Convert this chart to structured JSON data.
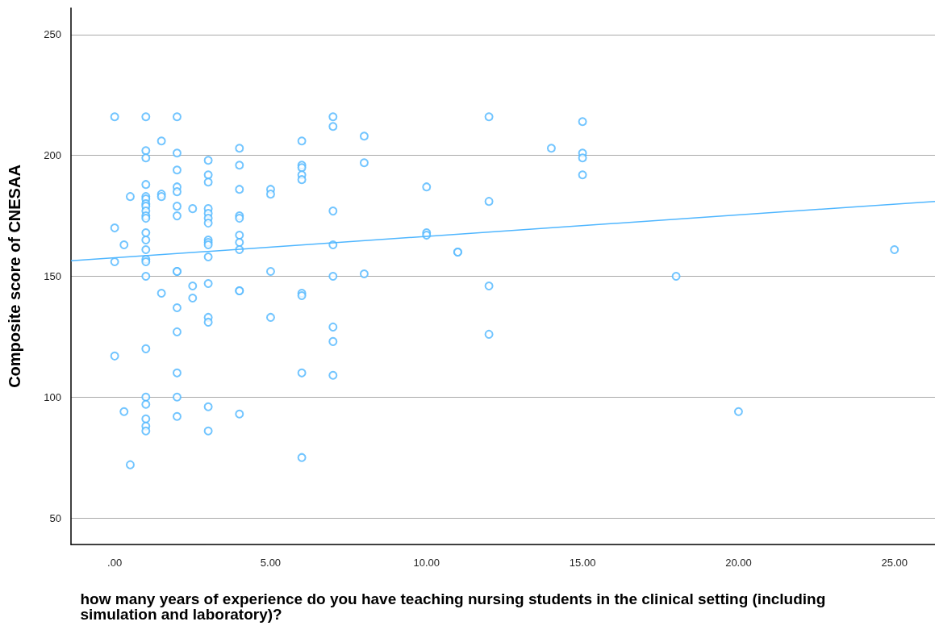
{
  "chart_data": {
    "type": "scatter",
    "xlabel": "how many years of experience do you have teaching nursing students in the clinical setting (including simulation and laboratory)?",
    "ylabel": "Composite score of CNESAA",
    "xlim": [
      -1.4,
      26.3
    ],
    "ylim": [
      39,
      261
    ],
    "xticks": [
      {
        "value": 0,
        "label": ".00"
      },
      {
        "value": 5,
        "label": "5.00"
      },
      {
        "value": 10,
        "label": "10.00"
      },
      {
        "value": 15,
        "label": "15.00"
      },
      {
        "value": 20,
        "label": "20.00"
      },
      {
        "value": 25,
        "label": "25.00"
      }
    ],
    "yticks": [
      50,
      100,
      150,
      200,
      250
    ],
    "grid": "y",
    "marker": "circle",
    "series": [
      {
        "color": "#4fb6ff",
        "x": [
          0,
          0,
          0,
          0,
          0.3,
          0.3,
          0.5,
          0.5,
          1,
          1,
          1,
          1,
          1,
          1,
          1,
          1,
          1,
          1,
          1,
          1,
          1,
          1,
          1,
          1,
          1,
          1,
          1,
          1,
          1,
          1,
          1,
          1.5,
          1.5,
          1.5,
          1.5,
          2,
          2,
          2,
          2,
          2,
          2,
          2,
          2,
          2,
          2,
          2,
          2,
          2,
          2,
          2.5,
          2.5,
          2.5,
          3,
          3,
          3,
          3,
          3,
          3,
          3,
          3,
          3,
          3,
          3,
          3,
          3,
          3,
          3,
          3,
          4,
          4,
          4,
          4,
          4,
          4,
          4,
          4,
          4,
          4,
          4,
          5,
          5,
          5,
          5,
          6,
          6,
          6,
          6,
          6,
          6,
          6,
          6,
          6,
          7,
          7,
          7,
          7,
          7,
          7,
          7,
          7,
          8,
          8,
          8,
          10,
          10,
          10,
          11,
          11,
          12,
          12,
          12,
          12,
          14,
          15,
          15,
          15,
          15,
          18,
          20,
          25
        ],
        "values": [
          216,
          170,
          156,
          117,
          163,
          94,
          183,
          72,
          216,
          202,
          199,
          188,
          183,
          182,
          180,
          179,
          177,
          175,
          174,
          168,
          165,
          161,
          157,
          156,
          150,
          120,
          100,
          97,
          91,
          88,
          86,
          206,
          184,
          183,
          143,
          216,
          201,
          194,
          187,
          185,
          179,
          175,
          152,
          152,
          137,
          127,
          110,
          100,
          92,
          178,
          146,
          141,
          198,
          192,
          189,
          178,
          176,
          174,
          172,
          165,
          164,
          163,
          158,
          147,
          133,
          131,
          96,
          86,
          203,
          196,
          186,
          175,
          174,
          167,
          164,
          161,
          144,
          144,
          93,
          186,
          184,
          152,
          133,
          206,
          196,
          195,
          192,
          190,
          143,
          142,
          110,
          75,
          216,
          212,
          177,
          163,
          150,
          129,
          123,
          109,
          208,
          197,
          151,
          187,
          168,
          167,
          160,
          160,
          216,
          181,
          146,
          126,
          203,
          214,
          201,
          199,
          192,
          150,
          94,
          161
        ]
      },
      {
        "type": "line",
        "color": "#4fb6ff",
        "marker": "none",
        "x": [
          -1.4,
          26.3
        ],
        "values": [
          156.4,
          181
        ]
      }
    ]
  }
}
